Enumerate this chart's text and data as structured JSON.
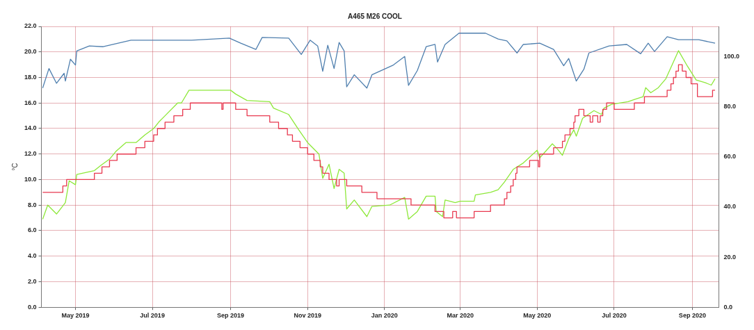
{
  "chart_data": {
    "type": "line",
    "title": "A465 M26 COOL",
    "ylabel": "°C",
    "xlim": [
      "2019-04-04",
      "2020-09-22"
    ],
    "xticks": [
      {
        "value": "2019-05-01",
        "label": "May 2019"
      },
      {
        "value": "2019-07-01",
        "label": "Jul 2019"
      },
      {
        "value": "2019-09-01",
        "label": "Sep 2019"
      },
      {
        "value": "2019-11-01",
        "label": "Nov 2019"
      },
      {
        "value": "2020-01-01",
        "label": "Jan 2020"
      },
      {
        "value": "2020-03-01",
        "label": "Mar 2020"
      },
      {
        "value": "2020-05-01",
        "label": "May 2020"
      },
      {
        "value": "2020-07-01",
        "label": "Jul 2020"
      },
      {
        "value": "2020-09-01",
        "label": "Sep 2020"
      }
    ],
    "ylim": [
      0,
      22
    ],
    "yticks": [
      {
        "value": 0,
        "label": "0.0"
      },
      {
        "value": 2,
        "label": "2.0"
      },
      {
        "value": 4,
        "label": "4.0"
      },
      {
        "value": 6,
        "label": "6.0"
      },
      {
        "value": 8,
        "label": "8.0"
      },
      {
        "value": 10,
        "label": "10.0"
      },
      {
        "value": 12,
        "label": "12.0"
      },
      {
        "value": 14,
        "label": "14.0"
      },
      {
        "value": 16,
        "label": "16.0"
      },
      {
        "value": 18,
        "label": "18.0"
      },
      {
        "value": 20,
        "label": "20.0"
      },
      {
        "value": 22,
        "label": "22.0"
      }
    ],
    "y2lim": [
      0,
      112
    ],
    "y2ticks": [
      {
        "value": 0,
        "label": "0.0"
      },
      {
        "value": 20,
        "label": "20.0"
      },
      {
        "value": 40,
        "label": "40.0"
      },
      {
        "value": 60,
        "label": "60.0"
      },
      {
        "value": 80,
        "label": "80.0"
      },
      {
        "value": 100,
        "label": "100.0"
      }
    ],
    "grid": true,
    "series": [
      {
        "axis": "y2",
        "color": "#4f7fae",
        "x": [
          "2019-04-05",
          "2019-04-10",
          "2019-04-16",
          "2019-04-22",
          "2019-04-23",
          "2019-04-27",
          "2019-05-01",
          "2019-05-02",
          "2019-05-12",
          "2019-05-23",
          "2019-06-14",
          "2019-07-06",
          "2019-08-01",
          "2019-08-31",
          "2019-09-09",
          "2019-09-21",
          "2019-09-26",
          "2019-10-17",
          "2019-10-27",
          "2019-11-03",
          "2019-11-09",
          "2019-11-13",
          "2019-11-17",
          "2019-11-22",
          "2019-11-26",
          "2019-11-30",
          "2019-12-02",
          "2019-12-08",
          "2019-12-18",
          "2019-12-22",
          "2020-01-08",
          "2020-01-17",
          "2020-01-20",
          "2020-01-27",
          "2020-02-03",
          "2020-02-10",
          "2020-02-12",
          "2020-02-18",
          "2020-02-29",
          "2020-03-21",
          "2020-03-31",
          "2020-04-07",
          "2020-04-15",
          "2020-04-20",
          "2020-05-03",
          "2020-05-14",
          "2020-05-22",
          "2020-05-26",
          "2020-06-01",
          "2020-06-07",
          "2020-06-11",
          "2020-06-27",
          "2020-07-11",
          "2020-07-22",
          "2020-07-28",
          "2020-08-02",
          "2020-08-12",
          "2020-08-21",
          "2020-09-06",
          "2020-09-19"
        ],
        "values": [
          87.4,
          95.2,
          89.3,
          93.3,
          90.2,
          98.9,
          96.6,
          102.2,
          104.2,
          103.9,
          106.5,
          106.5,
          106.5,
          107.3,
          105.3,
          102.8,
          107.6,
          107.3,
          100.8,
          106.5,
          104.2,
          94.1,
          104.5,
          95.2,
          105.6,
          102.2,
          87.9,
          92.7,
          87.4,
          92.7,
          96.6,
          100,
          88.5,
          94.4,
          103.9,
          104.8,
          97.8,
          104.8,
          109.3,
          109.3,
          107,
          106.2,
          101.4,
          104.8,
          105.3,
          102.8,
          96.3,
          99.2,
          90.2,
          94.9,
          101.4,
          104.2,
          104.8,
          101.1,
          105.3,
          102,
          107.9,
          106.7,
          106.7,
          105.3
        ]
      },
      {
        "type": "step",
        "color": "#e8384f",
        "x": [
          "2019-04-05",
          "2019-04-21",
          "2019-04-24",
          "2019-05-16",
          "2019-05-22",
          "2019-05-28",
          "2019-06-03",
          "2019-06-18",
          "2019-06-25",
          "2019-07-02",
          "2019-07-05",
          "2019-07-11",
          "2019-07-18",
          "2019-07-25",
          "2019-07-31",
          "2019-08-25",
          "2019-08-26",
          "2019-09-05",
          "2019-09-14",
          "2019-10-02",
          "2019-10-09",
          "2019-10-16",
          "2019-10-20",
          "2019-10-26",
          "2019-11-01",
          "2019-11-06",
          "2019-11-11",
          "2019-11-13",
          "2019-11-18",
          "2019-11-24",
          "2019-11-26",
          "2019-12-02",
          "2019-12-14",
          "2019-12-26",
          "2020-01-22",
          "2020-02-10",
          "2020-02-17",
          "2020-02-24",
          "2020-02-27",
          "2020-03-12",
          "2020-03-25",
          "2020-04-05",
          "2020-04-07",
          "2020-04-10",
          "2020-04-12",
          "2020-04-14",
          "2020-04-15",
          "2020-04-25",
          "2020-05-02",
          "2020-05-03",
          "2020-05-14",
          "2020-05-21",
          "2020-05-23",
          "2020-05-27",
          "2020-05-30",
          "2020-05-31",
          "2020-06-03",
          "2020-06-07",
          "2020-06-12",
          "2020-06-14",
          "2020-06-18",
          "2020-06-20",
          "2020-06-22",
          "2020-06-25",
          "2020-07-01",
          "2020-07-17",
          "2020-07-25",
          "2020-08-12",
          "2020-08-15",
          "2020-08-17",
          "2020-08-19",
          "2020-08-21",
          "2020-08-24",
          "2020-08-27",
          "2020-08-31",
          "2020-09-05",
          "2020-09-17",
          "2020-09-19"
        ],
        "values": [
          9,
          9.5,
          10,
          10.5,
          11,
          11.5,
          12,
          12.5,
          13,
          13.5,
          14,
          14.5,
          15,
          15.5,
          16,
          15.5,
          16,
          15.5,
          15,
          14.5,
          14,
          13.5,
          13,
          12.5,
          12,
          11.5,
          11,
          10.5,
          10,
          9.5,
          10,
          9.5,
          9,
          8.5,
          8,
          7.5,
          7,
          7.5,
          7,
          7.5,
          8,
          8.5,
          9,
          9.5,
          10,
          10.5,
          11,
          11.5,
          11,
          12,
          12.5,
          13,
          13.5,
          14,
          14.5,
          15,
          15.5,
          15,
          14.5,
          15,
          14.5,
          15,
          15.5,
          16,
          15.5,
          16,
          16.5,
          17,
          17.5,
          18,
          18.5,
          19,
          18.5,
          18,
          17.5,
          16.5,
          17,
          17
        ]
      },
      {
        "color": "#8ee83a",
        "x": [
          "2019-04-05",
          "2019-04-09",
          "2019-04-16",
          "2019-04-23",
          "2019-04-26",
          "2019-05-01",
          "2019-05-02",
          "2019-05-16",
          "2019-05-21",
          "2019-05-28",
          "2019-06-02",
          "2019-06-10",
          "2019-06-18",
          "2019-06-25",
          "2019-07-02",
          "2019-07-06",
          "2019-07-11",
          "2019-07-21",
          "2019-07-24",
          "2019-07-30",
          "2019-09-01",
          "2019-09-05",
          "2019-09-14",
          "2019-10-02",
          "2019-10-05",
          "2019-10-17",
          "2019-10-25",
          "2019-11-01",
          "2019-11-10",
          "2019-11-13",
          "2019-11-18",
          "2019-11-22",
          "2019-11-26",
          "2019-11-30",
          "2019-12-02",
          "2019-12-08",
          "2019-12-18",
          "2019-12-22",
          "2020-01-05",
          "2020-01-17",
          "2020-01-20",
          "2020-01-27",
          "2020-02-03",
          "2020-02-10",
          "2020-02-11",
          "2020-02-16",
          "2020-02-18",
          "2020-02-26",
          "2020-03-01",
          "2020-03-12",
          "2020-03-13",
          "2020-03-25",
          "2020-03-31",
          "2020-04-05",
          "2020-04-12",
          "2020-04-20",
          "2020-05-01",
          "2020-05-03",
          "2020-05-13",
          "2020-05-17",
          "2020-05-21",
          "2020-05-26",
          "2020-05-30",
          "2020-06-01",
          "2020-06-06",
          "2020-06-15",
          "2020-06-21",
          "2020-06-23",
          "2020-06-29",
          "2020-07-12",
          "2020-07-18",
          "2020-07-24",
          "2020-07-26",
          "2020-07-30",
          "2020-08-05",
          "2020-08-11",
          "2020-08-21",
          "2020-08-28",
          "2020-09-04",
          "2020-09-11",
          "2020-09-16",
          "2020-09-19"
        ],
        "values": [
          6.9,
          8,
          7.3,
          8.2,
          9.9,
          9.6,
          10.4,
          10.7,
          11.1,
          11.6,
          12.2,
          12.9,
          12.9,
          13.5,
          14,
          14.5,
          15,
          16,
          16,
          17,
          17,
          16.7,
          16.2,
          16.1,
          15.6,
          15.1,
          13.9,
          12.9,
          12,
          10.1,
          11.2,
          9.3,
          10.8,
          10.5,
          7.7,
          8.4,
          7.1,
          7.9,
          8,
          8.6,
          6.9,
          7.5,
          8.7,
          8.7,
          7.5,
          7.1,
          8.4,
          8.2,
          8.3,
          8.3,
          8.8,
          9,
          9.2,
          9.8,
          10.8,
          11.3,
          12.3,
          11.7,
          12.8,
          12.4,
          11.9,
          13.2,
          13.9,
          13.4,
          14.8,
          15.4,
          15.1,
          15.6,
          15.9,
          16.1,
          16.3,
          16.5,
          17.2,
          16.8,
          17.2,
          17.9,
          20.1,
          18.9,
          17.8,
          17.6,
          17.4,
          17.9
        ]
      }
    ]
  }
}
